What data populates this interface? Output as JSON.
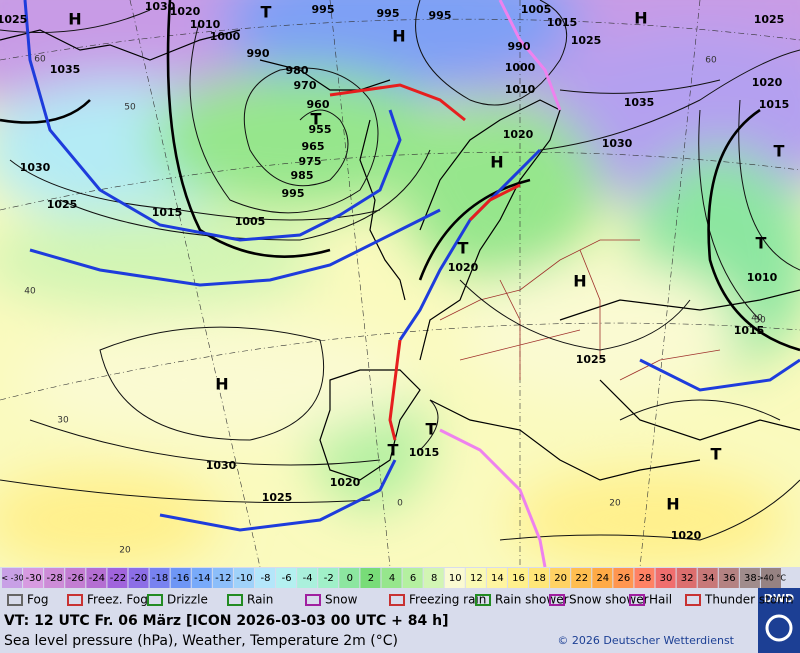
{
  "map": {
    "isobar_labels": [
      "1025",
      "1030",
      "1020",
      "1010",
      "1000",
      "990",
      "980",
      "970",
      "960",
      "955",
      "965",
      "975",
      "985",
      "995",
      "1005",
      "1015",
      "1025",
      "1030",
      "1035",
      "995",
      "995",
      "995",
      "990",
      "1000",
      "1010",
      "1005",
      "1015",
      "1025",
      "1035",
      "1030",
      "1020",
      "1025",
      "1020",
      "1015",
      "1010",
      "1015",
      "1025",
      "1020",
      "1030",
      "1025",
      "1020",
      "1015",
      "1020"
    ],
    "pressure_centers": [
      "H",
      "T",
      "H",
      "H",
      "T",
      "H",
      "T",
      "T",
      "H",
      "T",
      "H",
      "T",
      "T",
      "T",
      "H"
    ],
    "temperature_labels": [
      "60",
      "60",
      "50",
      "40",
      "30",
      "30",
      "20",
      "20",
      "40",
      "0"
    ]
  },
  "legend": {
    "temp_scale": [
      {
        "label": "< -30",
        "color": "#c8a0e6"
      },
      {
        "label": "-30",
        "color": "#d79be1"
      },
      {
        "label": "-28",
        "color": "#cd8cd7"
      },
      {
        "label": "-26",
        "color": "#c37dd2"
      },
      {
        "label": "-24",
        "color": "#b46ed2"
      },
      {
        "label": "-22",
        "color": "#a064dc"
      },
      {
        "label": "-20",
        "color": "#8c6ee6"
      },
      {
        "label": "-18",
        "color": "#7882f0"
      },
      {
        "label": "-16",
        "color": "#6e96f5"
      },
      {
        "label": "-14",
        "color": "#78aafa"
      },
      {
        "label": "-12",
        "color": "#8cbefa"
      },
      {
        "label": "-10",
        "color": "#a0d2fa"
      },
      {
        "label": "-8",
        "color": "#b4e6fa"
      },
      {
        "label": "-6",
        "color": "#b4f0f0"
      },
      {
        "label": "-4",
        "color": "#aaf0dc"
      },
      {
        "label": "-2",
        "color": "#a0f0c8"
      },
      {
        "label": "0",
        "color": "#8ce6a0"
      },
      {
        "label": "2",
        "color": "#78dc78"
      },
      {
        "label": "4",
        "color": "#96e68c"
      },
      {
        "label": "6",
        "color": "#b4f0a0"
      },
      {
        "label": "8",
        "color": "#d2f5b4"
      },
      {
        "label": "10",
        "color": "#fafad2"
      },
      {
        "label": "12",
        "color": "#fafab4"
      },
      {
        "label": "14",
        "color": "#fff5a0"
      },
      {
        "label": "16",
        "color": "#fff08c"
      },
      {
        "label": "18",
        "color": "#ffe678"
      },
      {
        "label": "20",
        "color": "#ffd264"
      },
      {
        "label": "22",
        "color": "#ffbe50"
      },
      {
        "label": "24",
        "color": "#ffaa46"
      },
      {
        "label": "26",
        "color": "#ff9650"
      },
      {
        "label": "28",
        "color": "#ff8264"
      },
      {
        "label": "30",
        "color": "#f06e6e"
      },
      {
        "label": "32",
        "color": "#dc6e6e"
      },
      {
        "label": "34",
        "color": "#c87878"
      },
      {
        "label": "36",
        "color": "#b48282"
      },
      {
        "label": "38",
        "color": "#a08c8c"
      },
      {
        "label": ">40 °C",
        "color": "#968282"
      }
    ],
    "weather": [
      "Fog",
      "Freez. Fog",
      "Drizzle",
      "Rain",
      "Snow",
      "Freezing rain",
      "Rain shower",
      "Snow shower",
      "Hail",
      "Thunder storm"
    ]
  },
  "footer": {
    "valid_time": "VT: 12 UTC Fr.  06 März [ICON 2026-03-03  00 UTC + 84 h]",
    "description": "Sea level pressure (hPa), Weather, Temperature 2m (°C)",
    "copyright": "© 2026 Deutscher Wetterdienst",
    "logo": "DWD"
  }
}
